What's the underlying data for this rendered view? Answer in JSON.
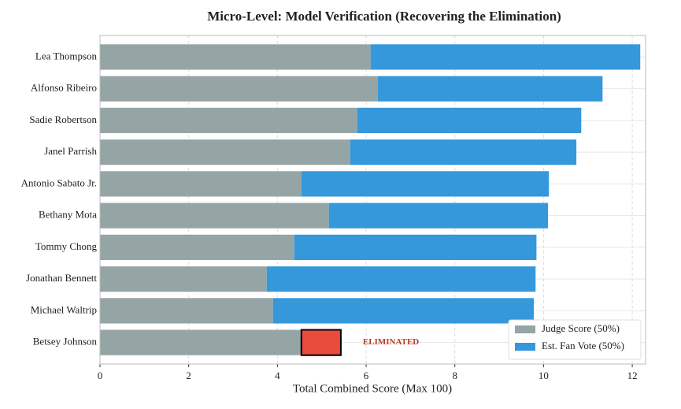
{
  "chart_data": {
    "type": "stacked_barh",
    "title": "Micro-Level: Model Verification (Recovering the Elimination)",
    "xlabel": "Total Combined Score (Max 100)",
    "categories": [
      "Lea Thompson",
      "Alfonso Ribeiro",
      "Sadie Robertson",
      "Janel Parrish",
      "Antonio Sabato Jr.",
      "Bethany Mota",
      "Tommy Chong",
      "Jonathan Bennett",
      "Michael Waltrip",
      "Betsey Johnson"
    ],
    "series": [
      {
        "name": "Judge Score (50%)",
        "color": "#95a5a6",
        "values": [
          6.1,
          6.26,
          5.8,
          5.64,
          4.54,
          5.16,
          4.38,
          3.76,
          3.9,
          4.54
        ]
      },
      {
        "name": "Est. Fan Vote (50%)",
        "color": "#3498db",
        "values": [
          6.08,
          5.07,
          5.05,
          5.1,
          5.58,
          4.94,
          5.46,
          6.06,
          5.88,
          0.89
        ],
        "colors": [
          "#3498db",
          "#3498db",
          "#3498db",
          "#3498db",
          "#3498db",
          "#3498db",
          "#3498db",
          "#3498db",
          "#3498db",
          "#e74c3c"
        ]
      }
    ],
    "annotation": "ELIMINATED",
    "annotation_color": "#c0392b",
    "xlim": [
      0,
      12.3
    ],
    "xticks": [
      0,
      2,
      4,
      6,
      8,
      10,
      12
    ],
    "grid": true,
    "legend": "lower right"
  }
}
